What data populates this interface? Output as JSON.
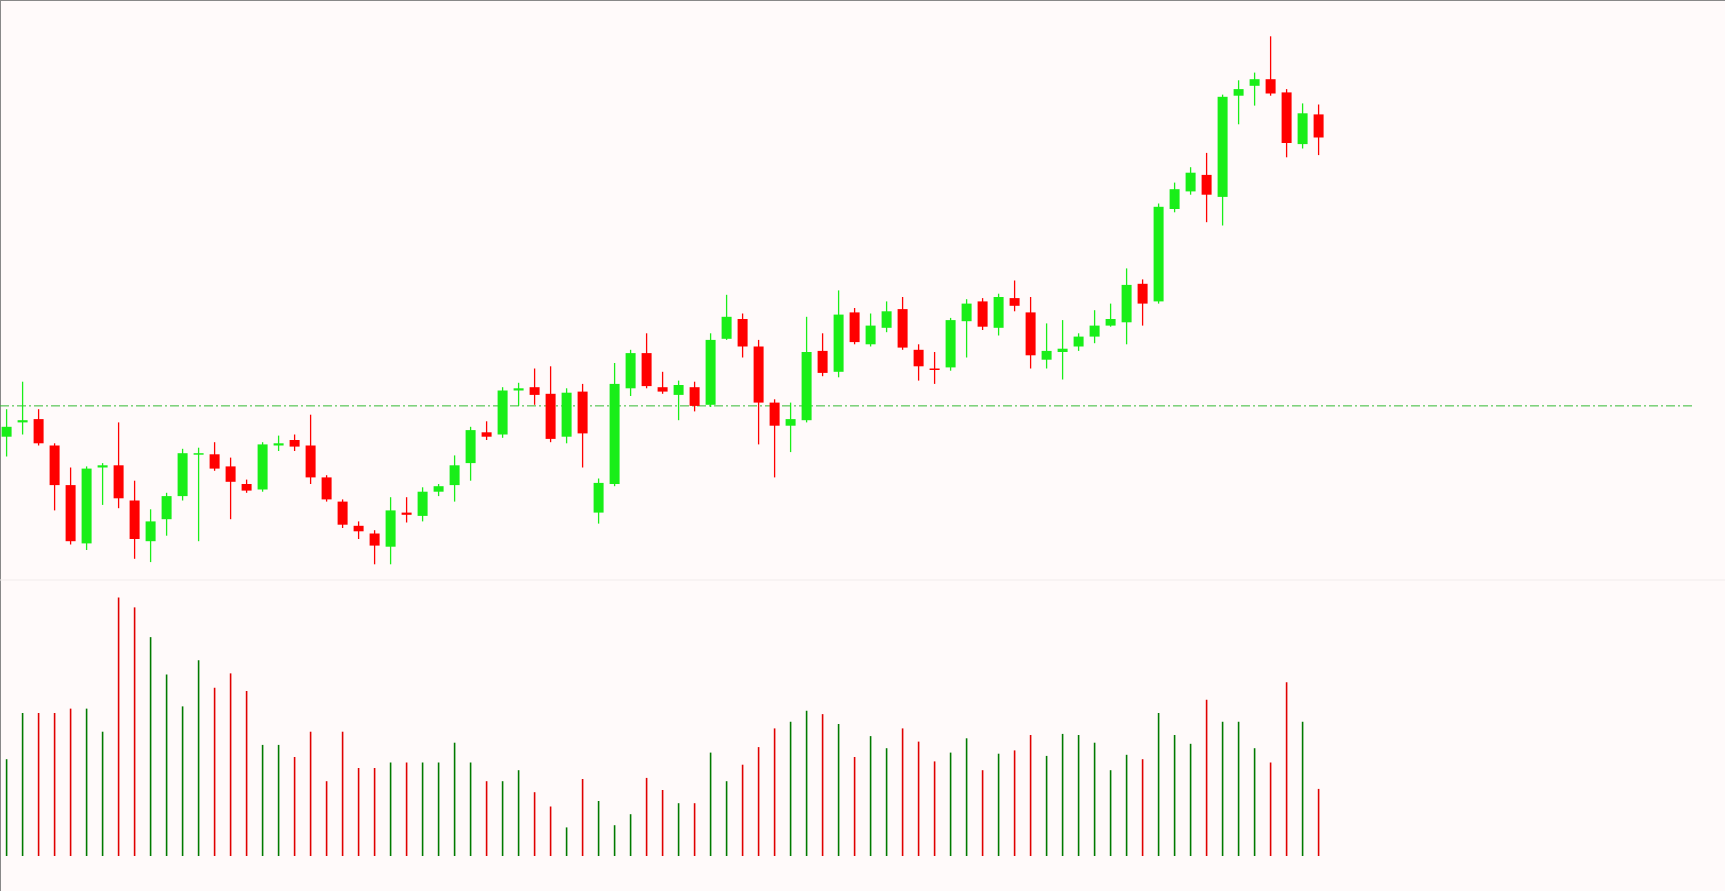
{
  "chart_data": [
    {
      "type": "candlestick",
      "open": [
        123,
        136,
        139,
        115,
        79,
        26,
        95,
        97,
        65,
        28,
        48,
        69,
        107,
        107,
        96,
        80,
        75,
        115,
        120,
        115,
        86,
        64,
        42,
        35,
        23,
        54,
        51,
        73,
        79,
        99,
        127,
        125,
        165,
        168,
        162,
        123,
        164,
        54,
        80,
        167,
        199,
        168,
        161,
        168,
        152,
        212,
        230,
        205,
        154,
        133,
        138,
        201,
        182,
        236,
        207,
        222,
        239,
        202,
        185,
        186,
        228,
        246,
        222,
        249,
        236,
        193,
        200,
        205,
        214,
        224,
        227,
        262,
        246,
        330,
        346,
        361,
        341,
        433,
        442,
        448,
        436,
        389,
        416
      ],
      "high": [
        148,
        173,
        148,
        117,
        95,
        96,
        99,
        136,
        83,
        57,
        72,
        112,
        113,
        118,
        104,
        84,
        118,
        124,
        125,
        143,
        88,
        66,
        46,
        38,
        68,
        68,
        77,
        80,
        106,
        132,
        137,
        168,
        172,
        185,
        187,
        167,
        171,
        85,
        190,
        202,
        217,
        182,
        174,
        173,
        217,
        252,
        235,
        211,
        157,
        154,
        232,
        217,
        256,
        240,
        235,
        246,
        250,
        207,
        200,
        231,
        248,
        249,
        253,
        265,
        250,
        226,
        229,
        217,
        238,
        244,
        276,
        266,
        335,
        354,
        368,
        381,
        434,
        447,
        454,
        487,
        439,
        426,
        425
      ],
      "low": [
        105,
        125,
        115,
        56,
        25,
        20,
        61,
        58,
        12,
        9,
        33,
        65,
        28,
        92,
        48,
        72,
        73,
        110,
        110,
        80,
        64,
        40,
        30,
        7,
        7,
        45,
        46,
        69,
        64,
        83,
        120,
        122,
        151,
        152,
        118,
        117,
        95,
        44,
        78,
        160,
        167,
        162,
        138,
        146,
        150,
        211,
        195,
        116,
        86,
        109,
        136,
        178,
        177,
        207,
        205,
        218,
        202,
        174,
        171,
        183,
        195,
        220,
        215,
        237,
        185,
        185,
        175,
        201,
        208,
        223,
        207,
        224,
        244,
        327,
        343,
        318,
        315,
        407,
        424,
        433,
        377,
        385,
        379
      ],
      "close": [
        132,
        138,
        117,
        79,
        28,
        94,
        97,
        67,
        30,
        46,
        69,
        108,
        108,
        94,
        82,
        74,
        116,
        117,
        114,
        86,
        66,
        43,
        37,
        24,
        56,
        52,
        73,
        78,
        97,
        129,
        123,
        165,
        167,
        161,
        121,
        163,
        126,
        81,
        171,
        199,
        169,
        164,
        170,
        151,
        211,
        232,
        205,
        154,
        133,
        139,
        200,
        181,
        234,
        209,
        224,
        237,
        204,
        187,
        184,
        229,
        244,
        223,
        250,
        242,
        197,
        201,
        203,
        214,
        224,
        230,
        261,
        244,
        332,
        348,
        363,
        343,
        432,
        439,
        448,
        435,
        390,
        417,
        395
      ],
      "up_color": "#19ee19",
      "down_color": "#ff0000",
      "hline": {
        "value": 151,
        "color": "#33bb33"
      },
      "ylim": [
        0,
        520
      ]
    },
    {
      "type": "bar",
      "values": [
        88,
        130,
        130,
        130,
        134,
        134,
        113,
        235,
        226,
        199,
        165,
        136,
        178,
        153,
        166,
        150,
        101,
        101,
        90,
        113,
        68,
        113,
        80,
        80,
        85,
        85,
        85,
        85,
        103,
        85,
        68,
        68,
        78,
        58,
        45,
        26,
        70,
        50,
        28,
        38,
        71,
        60,
        48,
        48,
        94,
        68,
        83,
        99,
        116,
        122,
        132,
        129,
        120,
        90,
        109,
        98,
        116,
        104,
        86,
        94,
        107,
        78,
        93,
        96,
        110,
        91,
        111,
        110,
        103,
        78,
        92,
        88,
        130,
        110,
        102,
        142,
        122,
        122,
        98,
        85,
        158,
        122,
        61
      ],
      "up_color": "#007a00",
      "down_color": "#e00000",
      "ylim": [
        0,
        250
      ]
    }
  ]
}
